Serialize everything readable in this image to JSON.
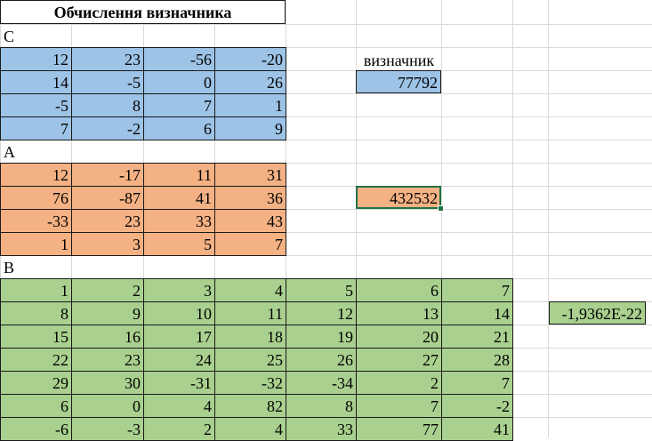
{
  "title": "Обчислення визначника",
  "sections": {
    "c_label": "C",
    "a_label": "A",
    "b_label": "B"
  },
  "determinant_label": "визначник",
  "matrix_c": [
    [
      "12",
      "23",
      "-56",
      "-20"
    ],
    [
      "14",
      "-5",
      "0",
      "26"
    ],
    [
      "-5",
      "8",
      "7",
      "1"
    ],
    [
      "7",
      "-2",
      "6",
      "9"
    ]
  ],
  "det_c": "77792",
  "matrix_a": [
    [
      "12",
      "-17",
      "11",
      "31"
    ],
    [
      "76",
      "-87",
      "41",
      "36"
    ],
    [
      "-33",
      "23",
      "33",
      "43"
    ],
    [
      "1",
      "3",
      "5",
      "7"
    ]
  ],
  "det_a": "432532",
  "matrix_b": [
    [
      "1",
      "2",
      "3",
      "4",
      "5",
      "6",
      "7"
    ],
    [
      "8",
      "9",
      "10",
      "11",
      "12",
      "13",
      "14"
    ],
    [
      "15",
      "16",
      "17",
      "18",
      "19",
      "20",
      "21"
    ],
    [
      "22",
      "23",
      "24",
      "25",
      "26",
      "27",
      "28"
    ],
    [
      "29",
      "30",
      "-31",
      "-32",
      "-34",
      "2",
      "7"
    ],
    [
      "6",
      "0",
      "4",
      "82",
      "8",
      "7",
      "-2"
    ],
    [
      "-6",
      "-3",
      "2",
      "4",
      "33",
      "77",
      "41"
    ]
  ],
  "det_b": "-1,9362E-22",
  "colors": {
    "blue": "#9dc3e6",
    "orange": "#f4b183",
    "green": "#a9d08e",
    "selection": "#217346"
  }
}
